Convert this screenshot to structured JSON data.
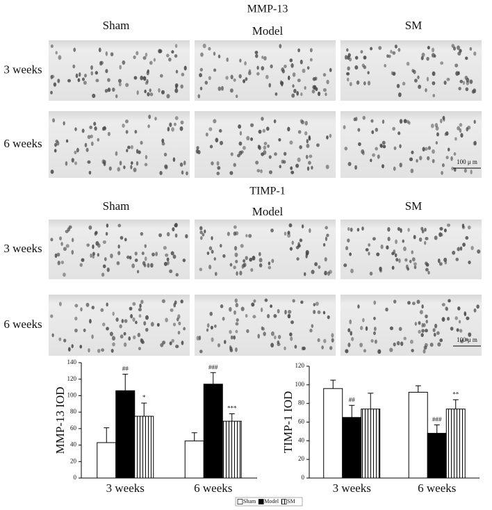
{
  "figure": {
    "sections": [
      {
        "title": "MMP-13",
        "columns": [
          "Sham",
          "Model",
          "SM"
        ],
        "rows": [
          "3 weeks",
          "6 weeks"
        ],
        "scale_bar": "100 μ m"
      },
      {
        "title": "TIMP-1",
        "columns": [
          "Sham",
          "Model",
          "SM"
        ],
        "rows": [
          "3 weeks",
          "6 weeks"
        ],
        "scale_bar": "100 μ m"
      }
    ]
  },
  "chart_data": [
    {
      "type": "bar",
      "y_label": "MMP-13 IOD",
      "categories": [
        "3 weeks",
        "6 weeks"
      ],
      "ylim": [
        0,
        140
      ],
      "yticks": [
        0,
        20,
        40,
        60,
        80,
        100,
        120,
        140
      ],
      "grid": false,
      "legend": "bottom",
      "series": [
        {
          "name": "Sham",
          "color": "#ffffff",
          "pattern": "none",
          "values": [
            43,
            45
          ],
          "errors": [
            18,
            10
          ],
          "significance": [
            null,
            null
          ]
        },
        {
          "name": "Model",
          "color": "#000000",
          "pattern": "none",
          "values": [
            106,
            114
          ],
          "errors": [
            20,
            14
          ],
          "significance": [
            "##",
            "###"
          ]
        },
        {
          "name": "SM",
          "color": "#ffffff",
          "pattern": "vertical-stripes",
          "values": [
            75,
            69
          ],
          "errors": [
            16,
            9
          ],
          "significance": [
            "*",
            "***"
          ]
        }
      ]
    },
    {
      "type": "bar",
      "y_label": "TIMP-1 IOD",
      "categories": [
        "3 weeks",
        "6 weeks"
      ],
      "ylim": [
        0,
        120
      ],
      "yticks": [
        0,
        20,
        40,
        60,
        80,
        100,
        120
      ],
      "grid": false,
      "series": [
        {
          "color": "#ffffff",
          "pattern": "none",
          "values": [
            96,
            92
          ],
          "errors": [
            9,
            7
          ],
          "significance": [
            null,
            null
          ]
        },
        {
          "color": "#000000",
          "pattern": "none",
          "values": [
            65,
            48
          ],
          "errors": [
            13,
            9
          ],
          "significance": [
            "##",
            "###"
          ]
        },
        {
          "color": "#ffffff",
          "pattern": "vertical-stripes",
          "values": [
            74,
            74
          ],
          "errors": [
            17,
            10
          ],
          "significance": [
            null,
            "**"
          ]
        }
      ]
    }
  ]
}
